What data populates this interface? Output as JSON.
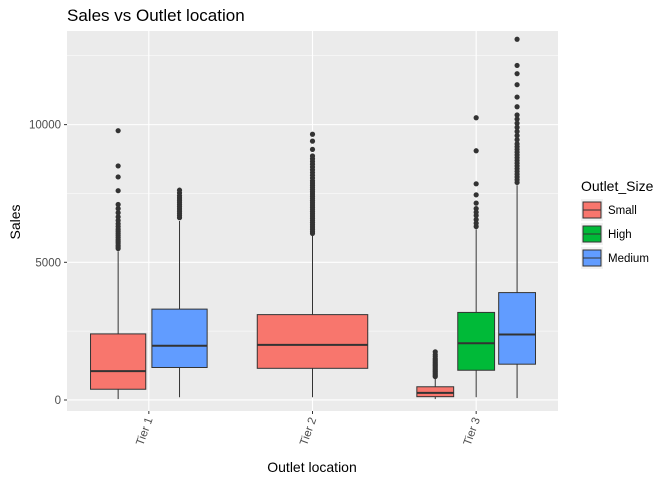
{
  "chart_data": {
    "type": "boxplot",
    "title": "Sales vs Outlet location",
    "xlabel": "Outlet location",
    "ylabel": "Sales",
    "categories": [
      "Tier 1",
      "Tier 2",
      "Tier 3"
    ],
    "ylim": [
      -400,
      13400
    ],
    "yticks": [
      0,
      5000,
      10000
    ],
    "ytick_labels": [
      "0",
      "5000",
      "10000"
    ],
    "grid": true,
    "legend": {
      "title": "Outlet_Size",
      "position": "right",
      "items": [
        {
          "name": "Small",
          "color": "#F8766D"
        },
        {
          "name": "High",
          "color": "#00BA38"
        },
        {
          "name": "Medium",
          "color": "#619CFF"
        }
      ]
    },
    "boxes": [
      {
        "category": "Tier 1",
        "group": "Small",
        "color": "#F8766D",
        "slot": 0,
        "slots": 2,
        "min": 33,
        "q1": 390,
        "median": 1050,
        "q3": 2400,
        "whisker_high": 5400,
        "outliers": [
          5500,
          5560,
          5620,
          5700,
          5760,
          5820,
          5900,
          5980,
          6050,
          6130,
          6200,
          6300,
          6400,
          6520,
          6650,
          6800,
          6950,
          7100,
          7600,
          8100,
          8500,
          9780
        ]
      },
      {
        "category": "Tier 1",
        "group": "Medium",
        "color": "#619CFF",
        "slot": 1,
        "slots": 2,
        "min": 100,
        "q1": 1180,
        "median": 1970,
        "q3": 3300,
        "whisker_high": 6500,
        "outliers": [
          6620,
          6700,
          6780,
          6860,
          6940,
          7020,
          7100,
          7180,
          7260,
          7340,
          7420,
          7520,
          7620
        ]
      },
      {
        "category": "Tier 2",
        "group": "Small",
        "color": "#F8766D",
        "slot": 0,
        "slots": 1,
        "min": 99,
        "q1": 1150,
        "median": 2000,
        "q3": 3100,
        "whisker_high": 6000,
        "outliers": [
          6050,
          6120,
          6200,
          6280,
          6360,
          6440,
          6520,
          6600,
          6680,
          6760,
          6840,
          6920,
          7000,
          7080,
          7160,
          7240,
          7320,
          7400,
          7480,
          7560,
          7640,
          7720,
          7800,
          7880,
          7960,
          8060,
          8160,
          8260,
          8360,
          8460,
          8560,
          8660,
          8760,
          8860,
          9100,
          9400,
          9650
        ]
      },
      {
        "category": "Tier 3",
        "group": "Small",
        "color": "#F8766D",
        "slot": 0,
        "slots": 3,
        "min": 33,
        "q1": 120,
        "median": 260,
        "q3": 480,
        "whisker_high": 820,
        "outliers": [
          850,
          900,
          950,
          1000,
          1050,
          1100,
          1150,
          1200,
          1250,
          1300,
          1350,
          1400,
          1450,
          1500,
          1580,
          1650,
          1750
        ]
      },
      {
        "category": "Tier 3",
        "group": "High",
        "color": "#00BA38",
        "slot": 1,
        "slots": 3,
        "min": 100,
        "q1": 1080,
        "median": 2060,
        "q3": 3180,
        "whisker_high": 6200,
        "outliers": [
          6300,
          6420,
          6550,
          6700,
          6820,
          6950,
          7150,
          7450,
          7850,
          9050,
          10250
        ]
      },
      {
        "category": "Tier 3",
        "group": "Medium",
        "color": "#619CFF",
        "slot": 2,
        "slots": 3,
        "min": 70,
        "q1": 1300,
        "median": 2380,
        "q3": 3900,
        "whisker_high": 7800,
        "outliers": [
          7900,
          8000,
          8100,
          8200,
          8300,
          8400,
          8500,
          8600,
          8700,
          8800,
          8900,
          9000,
          9100,
          9200,
          9300,
          9450,
          9600,
          9750,
          9900,
          10050,
          10200,
          10350,
          10650,
          11000,
          11450,
          11850,
          12150,
          13100
        ]
      }
    ]
  }
}
